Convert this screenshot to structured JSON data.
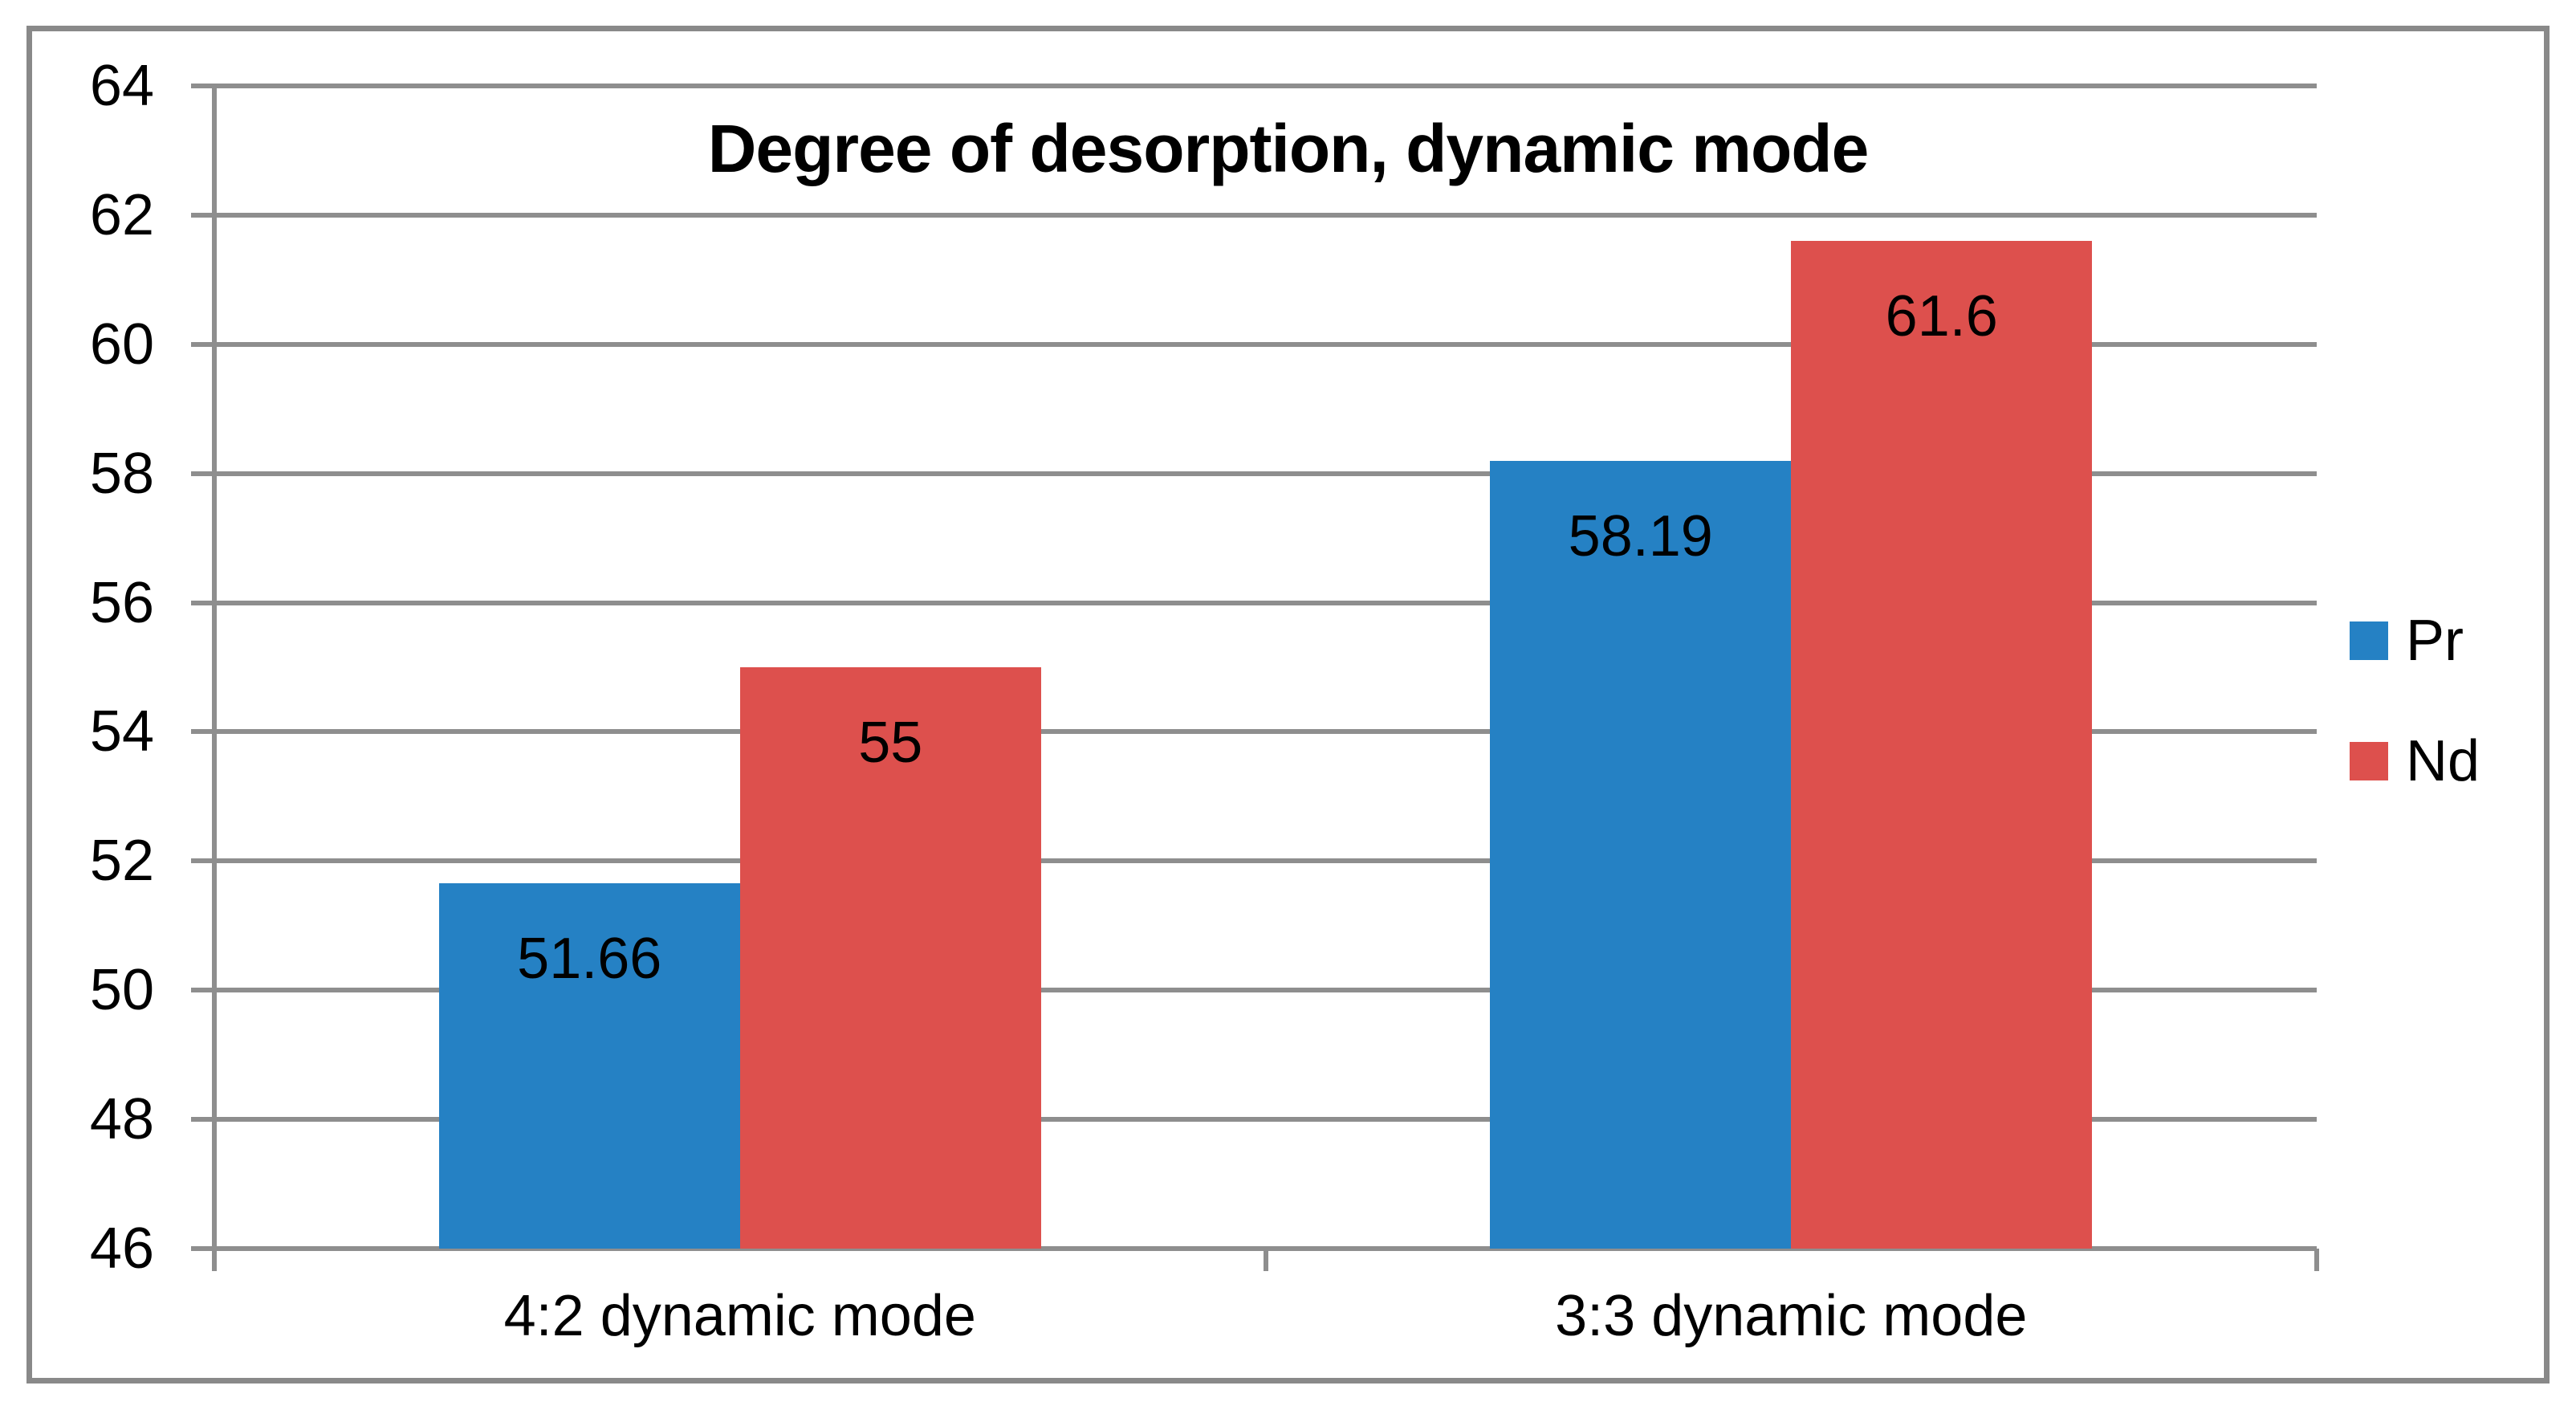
{
  "chart_data": {
    "type": "bar",
    "title": "Degree of desorption, dynamic mode",
    "categories": [
      "4:2 dynamic mode",
      "3:3 dynamic mode"
    ],
    "series": [
      {
        "name": "Pr",
        "color": "#2581c4",
        "values": [
          51.66,
          58.19
        ],
        "labels": [
          "51.66",
          "58.19"
        ]
      },
      {
        "name": "Nd",
        "color": "#dd504d",
        "values": [
          55,
          61.6
        ],
        "labels": [
          "55",
          "61.6"
        ]
      }
    ],
    "ylim": [
      46,
      64
    ],
    "yticks": [
      46,
      48,
      50,
      52,
      54,
      56,
      58,
      60,
      62,
      64
    ],
    "ytick_labels": [
      "46",
      "48",
      "50",
      "52",
      "54",
      "56",
      "58",
      "60",
      "62",
      "64"
    ],
    "grid": true,
    "value_labels_position": "inside-end",
    "legend": {
      "position": "right",
      "entries": [
        "Pr",
        "Nd"
      ]
    },
    "colors": {
      "gridline": "#8e8e8e",
      "axis": "#8e8e8e",
      "frame_border": "#898989",
      "label_text": "#000000",
      "background": "#ffffff"
    }
  }
}
